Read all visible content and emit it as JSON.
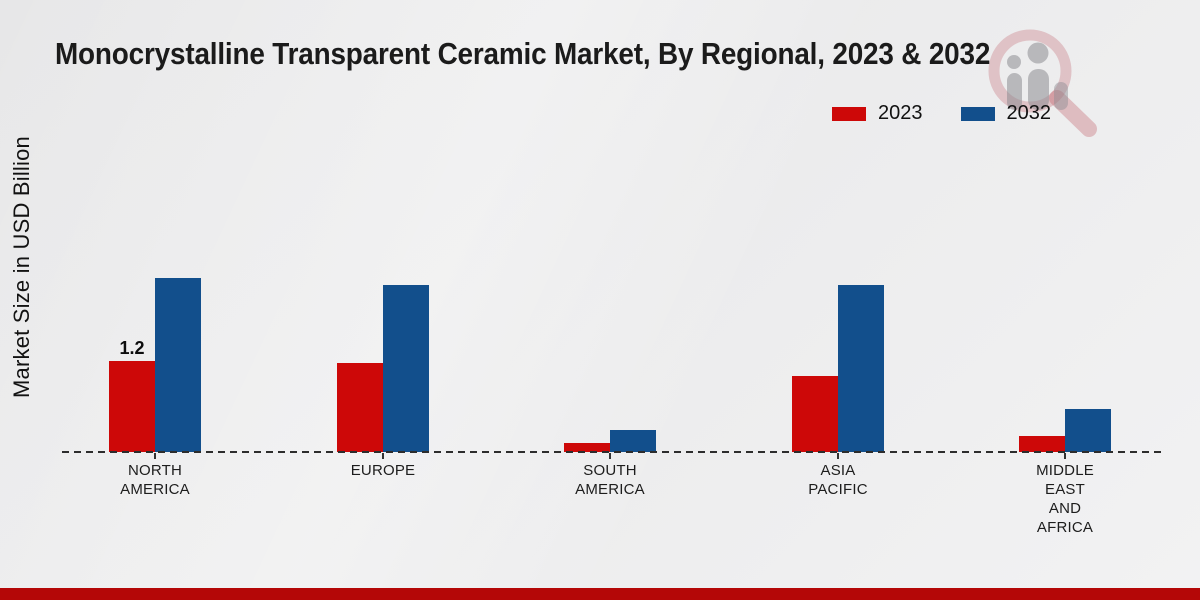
{
  "title": "Monocrystalline Transparent Ceramic Market, By Regional, 2023 & 2032",
  "ylabel": "Market Size in USD Billion",
  "legend": [
    {
      "label": "2023",
      "color": "#cd0808"
    },
    {
      "label": "2032",
      "color": "#124f8c"
    }
  ],
  "colors": {
    "bar_2023": "#cd0808",
    "bar_2032": "#124f8c",
    "footer_strip": "#b40707"
  },
  "watermark_icon": "magnifier-person-bars-logo",
  "chart_data": {
    "type": "bar",
    "title": "Monocrystalline Transparent Ceramic Market, By Regional, 2023 & 2032",
    "xlabel": "",
    "ylabel": "Market Size in USD Billion",
    "categories": [
      "NORTH AMERICA",
      "EUROPE",
      "SOUTH AMERICA",
      "ASIA PACIFIC",
      "MIDDLE EAST AND AFRICA"
    ],
    "tick_label_lines": [
      [
        "NORTH",
        "AMERICA"
      ],
      [
        "EUROPE"
      ],
      [
        "SOUTH",
        "AMERICA"
      ],
      [
        "ASIA",
        "PACIFIC"
      ],
      [
        "MIDDLE",
        "EAST",
        "AND",
        "AFRICA"
      ]
    ],
    "series": [
      {
        "name": "2023",
        "color": "#cd0808",
        "values": [
          1.2,
          1.18,
          0.12,
          1.0,
          0.21
        ]
      },
      {
        "name": "2032",
        "color": "#124f8c",
        "values": [
          2.3,
          2.2,
          0.29,
          2.2,
          0.57
        ]
      }
    ],
    "ylim": [
      0,
      2.65
    ],
    "grid": false,
    "legend_position": "top-right",
    "baseline_style": "dashed",
    "annotations": [
      {
        "text": "1.2",
        "series": "2023",
        "category": "NORTH AMERICA"
      }
    ]
  }
}
